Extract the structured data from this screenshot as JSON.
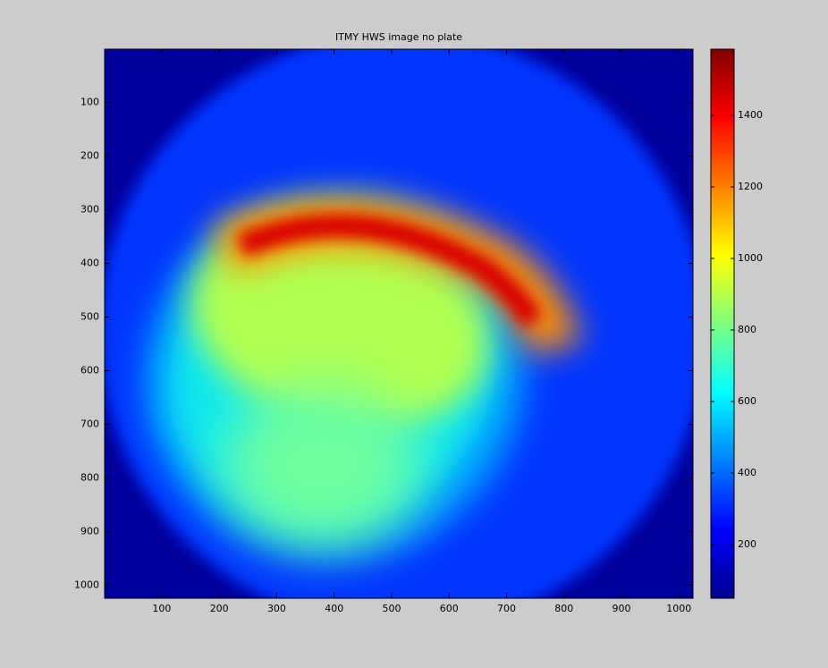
{
  "chart_data": {
    "type": "heatmap",
    "title": "ITMY HWS image no plate",
    "xlim": [
      0.5,
      1024.5
    ],
    "ylim": [
      0.5,
      1024.5
    ],
    "y_reversed": true,
    "xticks": [
      100,
      200,
      300,
      400,
      500,
      600,
      700,
      800,
      900,
      1000
    ],
    "yticks": [
      100,
      200,
      300,
      400,
      500,
      600,
      700,
      800,
      900,
      1000
    ],
    "colormap": "jet",
    "colorbar": {
      "clim": [
        50,
        1585
      ],
      "ticks": [
        200,
        400,
        600,
        800,
        1000,
        1200,
        1400
      ]
    }
  }
}
